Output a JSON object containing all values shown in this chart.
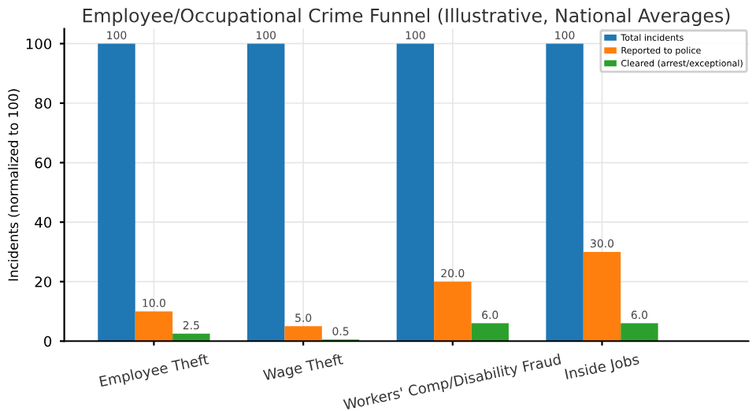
{
  "chart_data": {
    "type": "bar",
    "title": "Employee/Occupational Crime Funnel (Illustrative, National Averages)",
    "ylabel": "Incidents (normalized to 100)",
    "categories": [
      "Employee Theft",
      "Wage Theft",
      "Workers' Comp/Disability Fraud",
      "Inside Jobs"
    ],
    "series": [
      {
        "name": "Total incidents",
        "color": "#1f77b4",
        "values": [
          100,
          100,
          100,
          100
        ],
        "value_labels": [
          "100",
          "100",
          "100",
          "100"
        ]
      },
      {
        "name": "Reported to police",
        "color": "#ff7f0e",
        "values": [
          10.0,
          5.0,
          20.0,
          30.0
        ],
        "value_labels": [
          "10.0",
          "5.0",
          "20.0",
          "30.0"
        ]
      },
      {
        "name": "Cleared (arrest/exceptional)",
        "color": "#2ca02c",
        "values": [
          2.5,
          0.5,
          6.0,
          6.0
        ],
        "value_labels": [
          "2.5",
          "0.5",
          "6.0",
          "6.0"
        ]
      }
    ],
    "ylim": [
      0,
      105
    ],
    "yticks": [
      0,
      20,
      40,
      60,
      80,
      100
    ],
    "grid": true,
    "legend": "top right"
  }
}
